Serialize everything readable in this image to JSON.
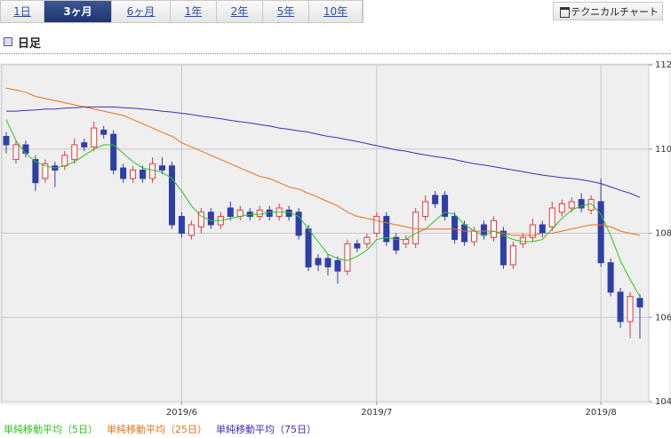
{
  "ui": {
    "tabs": [
      {
        "label": "1日",
        "active": false
      },
      {
        "label": "3ヶ月",
        "active": true
      },
      {
        "label": "6ヶ月",
        "active": false
      },
      {
        "label": "1年",
        "active": false
      },
      {
        "label": "2年",
        "active": false
      },
      {
        "label": "5年",
        "active": false
      },
      {
        "label": "10年",
        "active": false
      }
    ],
    "technical_button": "テクニカルチャート",
    "section_title": "日足"
  },
  "chart_data": {
    "type": "candlestick",
    "categories": [
      null,
      null,
      null,
      null,
      null,
      null,
      null,
      null,
      null,
      null,
      null,
      null,
      null,
      null,
      null,
      null,
      null,
      null,
      "2019/6",
      null,
      null,
      null,
      null,
      null,
      null,
      null,
      null,
      null,
      null,
      null,
      null,
      null,
      null,
      null,
      null,
      null,
      null,
      null,
      "2019/7",
      null,
      null,
      null,
      null,
      null,
      null,
      null,
      null,
      null,
      null,
      null,
      null,
      null,
      null,
      null,
      null,
      null,
      null,
      null,
      null,
      null,
      null,
      "2019/8",
      null,
      null,
      null,
      null
    ],
    "open": [
      110.3,
      109.75,
      110.1,
      109.75,
      109.3,
      109.6,
      109.6,
      109.75,
      110.15,
      110.05,
      110.45,
      110.35,
      109.55,
      109.3,
      109.5,
      109.3,
      109.6,
      109.6,
      108.4,
      107.95,
      108.15,
      108.5,
      108.2,
      108.6,
      108.4,
      108.5,
      108.4,
      108.55,
      108.4,
      108.55,
      108.5,
      108.1,
      107.4,
      107.4,
      107.35,
      107.1,
      107.75,
      107.75,
      108.0,
      108.4,
      107.9,
      107.75,
      107.75,
      108.4,
      108.9,
      108.9,
      108.4,
      108.2,
      107.8,
      108.2,
      107.9,
      108.05,
      107.25,
      107.75,
      107.9,
      108.2,
      108.15,
      108.5,
      108.6,
      108.8,
      108.55,
      108.75,
      107.3,
      106.6,
      105.9,
      106.45
    ],
    "high": [
      110.4,
      110.2,
      110.2,
      109.85,
      109.75,
      109.7,
      109.95,
      110.25,
      110.25,
      110.65,
      110.55,
      110.45,
      109.65,
      109.6,
      109.6,
      109.8,
      109.8,
      109.7,
      108.5,
      108.3,
      108.6,
      108.6,
      108.5,
      108.75,
      108.65,
      108.6,
      108.65,
      108.65,
      108.7,
      108.65,
      108.6,
      108.2,
      107.5,
      107.5,
      107.45,
      107.85,
      107.85,
      108.0,
      108.5,
      108.5,
      108.0,
      107.95,
      108.6,
      108.9,
      109.0,
      109.0,
      108.5,
      108.3,
      108.15,
      108.3,
      108.4,
      108.15,
      107.8,
      108.0,
      108.35,
      108.3,
      108.75,
      108.8,
      108.85,
      108.95,
      108.9,
      109.3,
      107.4,
      106.7,
      106.6,
      106.55
    ],
    "low": [
      109.9,
      109.65,
      109.8,
      109.0,
      109.2,
      109.1,
      109.5,
      109.65,
      109.95,
      109.95,
      110.25,
      109.4,
      109.2,
      109.2,
      109.2,
      109.2,
      109.4,
      108.1,
      107.9,
      107.85,
      108.0,
      108.1,
      108.1,
      108.3,
      108.3,
      108.3,
      108.3,
      108.3,
      108.3,
      108.3,
      107.85,
      107.1,
      107.1,
      107.0,
      106.8,
      107.0,
      107.55,
      107.65,
      107.9,
      107.7,
      107.5,
      107.65,
      107.65,
      108.3,
      108.6,
      108.3,
      107.75,
      107.7,
      107.7,
      107.85,
      107.8,
      107.15,
      107.15,
      107.65,
      107.8,
      107.9,
      108.05,
      108.4,
      108.5,
      108.5,
      108.45,
      107.2,
      106.5,
      105.75,
      105.5,
      105.5
    ],
    "close": [
      110.1,
      110.1,
      109.9,
      109.2,
      109.65,
      109.5,
      109.85,
      110.1,
      110.05,
      110.5,
      110.35,
      109.5,
      109.3,
      109.5,
      109.3,
      109.65,
      109.5,
      108.2,
      108.0,
      108.2,
      108.5,
      108.2,
      108.4,
      108.4,
      108.55,
      108.4,
      108.55,
      108.4,
      108.6,
      108.4,
      107.95,
      107.2,
      107.25,
      107.2,
      107.1,
      107.75,
      107.65,
      107.9,
      108.4,
      107.8,
      107.6,
      107.85,
      108.5,
      108.75,
      108.7,
      108.4,
      107.85,
      107.8,
      108.05,
      107.95,
      108.3,
      107.25,
      107.7,
      107.9,
      108.2,
      108.0,
      108.6,
      108.7,
      108.75,
      108.6,
      108.8,
      107.3,
      106.6,
      105.9,
      106.5,
      106.25
    ],
    "up_color": "#e0393e",
    "down_color": "#2f3fa8",
    "series": [
      {
        "name": "単純移動平均（5日）",
        "color": "#2bc41e",
        "values": [
          110.7,
          110.2,
          109.9,
          109.7,
          109.6,
          109.55,
          109.6,
          109.7,
          109.85,
          110.0,
          110.1,
          110.1,
          109.9,
          109.7,
          109.55,
          109.5,
          109.45,
          109.3,
          109.0,
          108.65,
          108.4,
          108.3,
          108.3,
          108.35,
          108.4,
          108.45,
          108.45,
          108.5,
          108.5,
          108.5,
          108.4,
          108.1,
          107.8,
          107.5,
          107.4,
          107.35,
          107.45,
          107.6,
          107.85,
          107.9,
          107.85,
          107.85,
          108.0,
          108.1,
          108.3,
          108.5,
          108.45,
          108.2,
          108.05,
          107.95,
          108.05,
          107.95,
          107.85,
          107.8,
          107.8,
          107.85,
          108.1,
          108.35,
          108.55,
          108.65,
          108.7,
          108.45,
          107.95,
          107.35,
          106.9,
          106.5
        ]
      },
      {
        "name": "単純移動平均（25日）",
        "color": "#e8721c",
        "values": [
          111.45,
          111.4,
          111.35,
          111.25,
          111.2,
          111.15,
          111.1,
          111.05,
          111.0,
          110.95,
          110.9,
          110.85,
          110.8,
          110.7,
          110.6,
          110.5,
          110.4,
          110.3,
          110.15,
          110.05,
          109.95,
          109.85,
          109.75,
          109.65,
          109.55,
          109.45,
          109.35,
          109.3,
          109.2,
          109.1,
          109.05,
          108.95,
          108.85,
          108.75,
          108.65,
          108.5,
          108.4,
          108.35,
          108.3,
          108.25,
          108.2,
          108.15,
          108.1,
          108.1,
          108.1,
          108.1,
          108.1,
          108.05,
          108.05,
          108.05,
          108.05,
          108.0,
          107.95,
          107.95,
          107.95,
          108.0,
          108.0,
          108.05,
          108.1,
          108.15,
          108.2,
          108.2,
          108.15,
          108.05,
          108.0,
          107.95
        ]
      },
      {
        "name": "単純移動平均（75日）",
        "color": "#4a2bb8",
        "values": [
          110.9,
          110.9,
          110.92,
          110.93,
          110.95,
          110.95,
          110.97,
          110.98,
          111.0,
          111.0,
          111.0,
          111.0,
          110.98,
          110.97,
          110.95,
          110.93,
          110.9,
          110.88,
          110.85,
          110.82,
          110.78,
          110.75,
          110.72,
          110.68,
          110.65,
          110.62,
          110.58,
          110.55,
          110.5,
          110.47,
          110.43,
          110.4,
          110.35,
          110.3,
          110.27,
          110.22,
          110.18,
          110.13,
          110.08,
          110.03,
          109.98,
          109.95,
          109.9,
          109.86,
          109.82,
          109.79,
          109.75,
          109.7,
          109.65,
          109.62,
          109.58,
          109.54,
          109.5,
          109.46,
          109.42,
          109.38,
          109.35,
          109.32,
          109.3,
          109.27,
          109.23,
          109.18,
          109.1,
          109.02,
          108.95,
          108.85
        ]
      }
    ],
    "ylim": [
      104,
      112
    ],
    "yticks": [
      104,
      106,
      108,
      110,
      112
    ],
    "grid": true
  }
}
